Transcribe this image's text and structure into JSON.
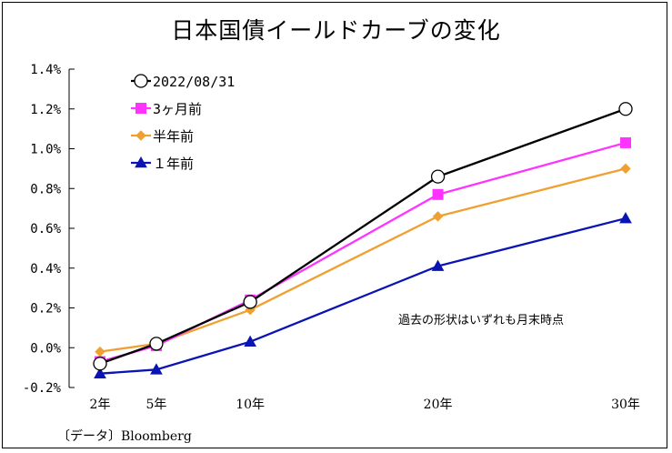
{
  "chart_data": {
    "type": "line",
    "title": "日本国債イールドカーブの変化",
    "categories": [
      "2年",
      "5年",
      "10年",
      "20年",
      "30年"
    ],
    "x_years": [
      2,
      5,
      10,
      20,
      30
    ],
    "y_ticks": [
      "1.4%",
      "1.2%",
      "1.0%",
      "0.8%",
      "0.6%",
      "0.4%",
      "0.2%",
      "0.0%",
      "-0.2%"
    ],
    "ylim": [
      -0.2,
      1.4
    ],
    "grid": false,
    "legend_position": "top-left",
    "series": [
      {
        "name": "2022/08/31",
        "values": [
          -0.08,
          0.02,
          0.23,
          0.86,
          1.2
        ],
        "color": "#000000",
        "marker_fill": "#ffffff",
        "marker": "circle"
      },
      {
        "name": "3ヶ月前",
        "values": [
          -0.07,
          0.01,
          0.24,
          0.77,
          1.03
        ],
        "color": "#ff33ff",
        "marker_fill": "#ff33ff",
        "marker": "square"
      },
      {
        "name": "半年前",
        "values": [
          -0.02,
          0.02,
          0.19,
          0.66,
          0.9
        ],
        "color": "#f0a030",
        "marker_fill": "#f0a030",
        "marker": "diamond"
      },
      {
        "name": "１年前",
        "values": [
          -0.13,
          -0.11,
          0.03,
          0.41,
          0.65
        ],
        "color": "#0a14b4",
        "marker_fill": "#0a14b4",
        "marker": "triangle"
      }
    ],
    "annotation": "過去の形状はいずれも月末時点",
    "source": "〔データ〕Bloomberg"
  }
}
